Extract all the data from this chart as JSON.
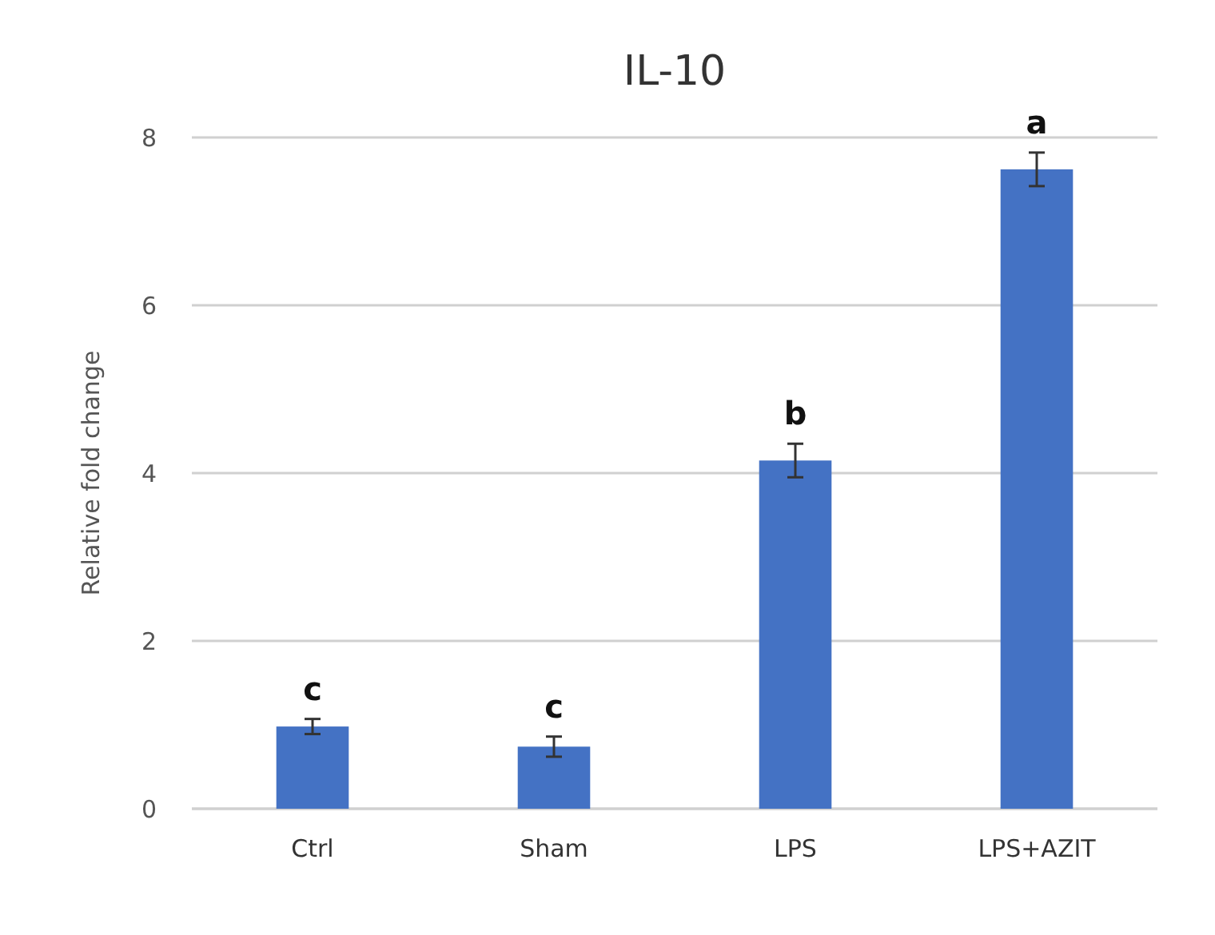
{
  "chart_data": {
    "type": "bar",
    "title": "IL-10",
    "ylabel": "Relative fold change",
    "categories": [
      "Ctrl",
      "Sham",
      "LPS",
      "LPS+AZIT"
    ],
    "values": [
      0.98,
      0.74,
      4.15,
      7.62
    ],
    "errors": [
      0.09,
      0.12,
      0.2,
      0.2
    ],
    "color": "#4472c4",
    "ylim": [
      0,
      8
    ],
    "yticks": [
      0,
      2,
      4,
      6,
      8
    ],
    "grid": "y",
    "annotations": [
      {
        "text": "c",
        "x": "Ctrl",
        "y": 1.07
      },
      {
        "text": "c",
        "x": "Sham",
        "y": 0.86
      },
      {
        "text": "b",
        "x": "LPS",
        "y": 4.35
      },
      {
        "text": "a",
        "x": "LPS+AZIT",
        "y": 7.82
      }
    ]
  }
}
